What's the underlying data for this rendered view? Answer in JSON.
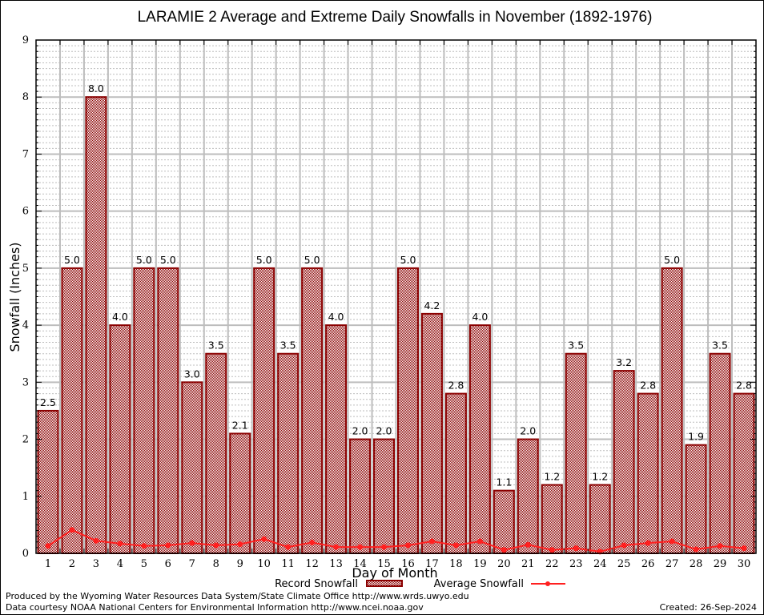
{
  "chart_data": {
    "type": "bar",
    "title": "LARAMIE 2 Average and Extreme Daily Snowfalls in November (1892-1976)",
    "xlabel": "Day of Month",
    "ylabel": "Snowfall (Inches)",
    "ylim": [
      0,
      9
    ],
    "yticks": [
      "0",
      "1",
      "2",
      "3",
      "4",
      "5",
      "6",
      "7",
      "8",
      "9"
    ],
    "grid": true,
    "categories": [
      "1",
      "2",
      "3",
      "4",
      "5",
      "6",
      "7",
      "8",
      "9",
      "10",
      "11",
      "12",
      "13",
      "14",
      "15",
      "16",
      "17",
      "18",
      "19",
      "20",
      "21",
      "22",
      "23",
      "24",
      "25",
      "26",
      "27",
      "28",
      "29",
      "30"
    ],
    "series": [
      {
        "name": "Record Snowfall",
        "type": "bar",
        "color": "#8b0000",
        "values": [
          2.5,
          5.0,
          8.0,
          4.0,
          5.0,
          5.0,
          3.0,
          3.5,
          2.1,
          5.0,
          3.5,
          5.0,
          4.0,
          2.0,
          2.0,
          5.0,
          4.2,
          2.8,
          4.0,
          1.1,
          2.0,
          1.2,
          3.5,
          1.2,
          3.2,
          2.8,
          5.0,
          1.9,
          3.5,
          2.8
        ],
        "labels": [
          "2.5",
          "5.0",
          "8.0",
          "4.0",
          "5.0",
          "5.0",
          "3.0",
          "3.5",
          "2.1",
          "5.0",
          "3.5",
          "5.0",
          "4.0",
          "2.0",
          "2.0",
          "5.0",
          "4.2",
          "2.8",
          "4.0",
          "1.1",
          "2.0",
          "1.2",
          "3.5",
          "1.2",
          "3.2",
          "2.8",
          "5.0",
          "1.9",
          "3.5",
          "2.8"
        ]
      },
      {
        "name": "Average Snowfall",
        "type": "line",
        "color": "#ff2020",
        "values": [
          0.13,
          0.41,
          0.22,
          0.17,
          0.13,
          0.14,
          0.18,
          0.14,
          0.16,
          0.25,
          0.11,
          0.19,
          0.11,
          0.11,
          0.11,
          0.14,
          0.21,
          0.14,
          0.21,
          0.06,
          0.15,
          0.06,
          0.09,
          0.03,
          0.14,
          0.18,
          0.21,
          0.07,
          0.13,
          0.09
        ]
      }
    ],
    "legend": {
      "placement": "bottom-center",
      "entries": [
        "Record Snowfall",
        "Average Snowfall"
      ]
    }
  },
  "footer": {
    "produced_by": "Produced by the Wyoming Water Resources Data System/State Climate Office http://www.wrds.uwyo.edu",
    "courtesy": "Data courtesy NOAA National Centers for Environmental Information http://www.ncei.noaa.gov",
    "created": "Created: 26-Sep-2024"
  }
}
